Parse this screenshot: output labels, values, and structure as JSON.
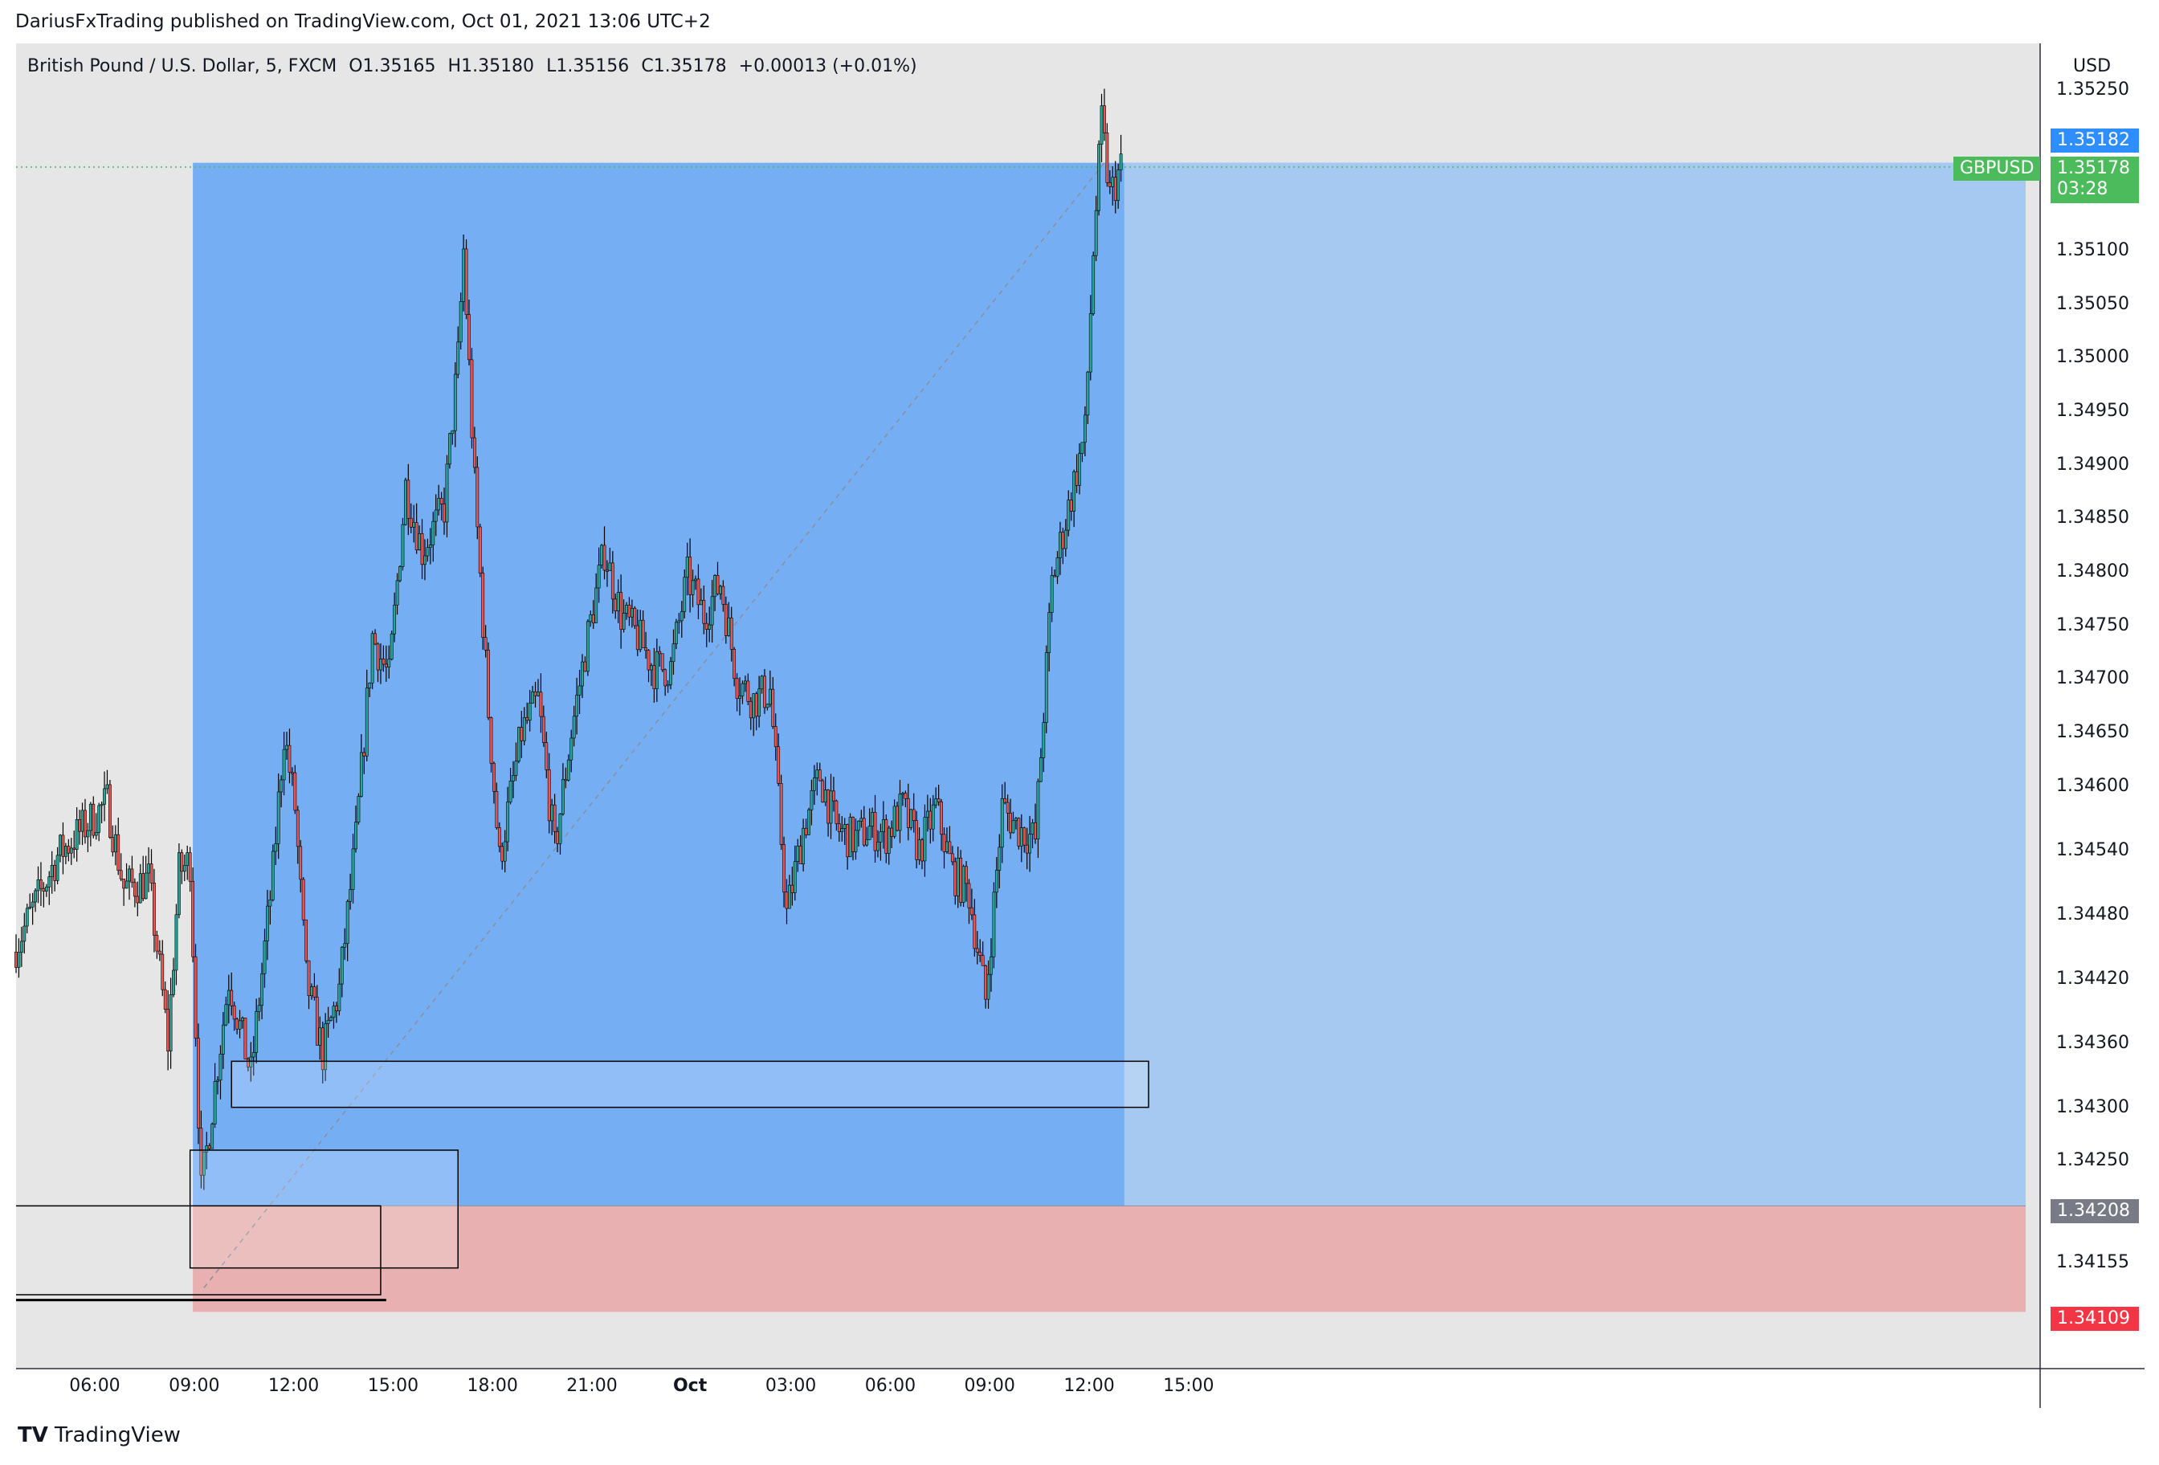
{
  "header": {
    "publisher_line": "DariusFxTrading published on TradingView.com, Oct 01, 2021 13:06 UTC+2"
  },
  "legend": {
    "symbol": "British Pound / U.S. Dollar, 5, FXCM",
    "open_label": "O",
    "open": "1.35165",
    "high_label": "H",
    "high": "1.35180",
    "low_label": "L",
    "low": "1.35156",
    "close_label": "C",
    "close": "1.35178",
    "change": "+0.00013 (+0.01%)"
  },
  "price_axis": {
    "currency": "USD",
    "ticks": [
      "1.35250",
      "1.35100",
      "1.35050",
      "1.35000",
      "1.34950",
      "1.34900",
      "1.34850",
      "1.34800",
      "1.34750",
      "1.34700",
      "1.34650",
      "1.34600",
      "1.34540",
      "1.34480",
      "1.34420",
      "1.34360",
      "1.34300",
      "1.34250",
      "1.34155"
    ],
    "tags": {
      "target": "1.35182",
      "current": "1.35178",
      "countdown": "03:28",
      "symbol_tag": "GBPUSD",
      "entry": "1.34208",
      "stop": "1.34109"
    }
  },
  "time_axis": {
    "ticks": [
      "06:00",
      "09:00",
      "12:00",
      "15:00",
      "18:00",
      "21:00",
      "Oct",
      "03:00",
      "06:00",
      "09:00",
      "12:00",
      "15:00"
    ]
  },
  "footer": {
    "brand": "TradingView"
  },
  "colors": {
    "up": "#26a69a",
    "down": "#ef5350",
    "profit_zone": "#76aef4",
    "stop_zone": "#e8b0b0",
    "target_tag": "#2f8eff",
    "current_tag": "#4cbb5c",
    "stop_tag": "#f23645",
    "entry_tag": "#787b86"
  },
  "chart_data": {
    "type": "candlestick",
    "symbol": "GBPUSD",
    "timeframe": "5",
    "x_range": [
      "2021-09-30 03:40",
      "2021-10-01 16:00"
    ],
    "ylim": [
      1.3406,
      1.353
    ],
    "position": {
      "type": "long",
      "entry": 1.34208,
      "target": 1.35182,
      "stop": 1.34109
    },
    "close_path": [
      [
        "2021-09-30 03:40",
        1.34445
      ],
      [
        "2021-09-30 05:00",
        1.34535
      ],
      [
        "2021-09-30 06:00",
        1.34568
      ],
      [
        "2021-09-30 06:30",
        1.34585
      ],
      [
        "2021-09-30 07:00",
        1.34505
      ],
      [
        "2021-09-30 07:45",
        1.34512
      ],
      [
        "2021-09-30 08:00",
        1.3445
      ],
      [
        "2021-09-30 08:20",
        1.3436
      ],
      [
        "2021-09-30 08:40",
        1.3452
      ],
      [
        "2021-09-30 09:00",
        1.3453
      ],
      [
        "2021-09-30 09:20",
        1.3422
      ],
      [
        "2021-09-30 09:45",
        1.3432
      ],
      [
        "2021-09-30 10:10",
        1.3442
      ],
      [
        "2021-09-30 10:50",
        1.3433
      ],
      [
        "2021-09-30 11:30",
        1.3452
      ],
      [
        "2021-09-30 11:50",
        1.3465
      ],
      [
        "2021-09-30 12:10",
        1.3458
      ],
      [
        "2021-09-30 12:30",
        1.3442
      ],
      [
        "2021-09-30 13:00",
        1.3435
      ],
      [
        "2021-09-30 13:30",
        1.3441
      ],
      [
        "2021-09-30 14:00",
        1.3455
      ],
      [
        "2021-09-30 14:30",
        1.3474
      ],
      [
        "2021-09-30 15:00",
        1.347
      ],
      [
        "2021-09-30 15:30",
        1.3488
      ],
      [
        "2021-09-30 16:00",
        1.3482
      ],
      [
        "2021-09-30 16:40",
        1.3486
      ],
      [
        "2021-09-30 17:05",
        1.35
      ],
      [
        "2021-09-30 17:15",
        1.351
      ],
      [
        "2021-09-30 17:35",
        1.3488
      ],
      [
        "2021-09-30 18:00",
        1.3467
      ],
      [
        "2021-09-30 18:20",
        1.3453
      ],
      [
        "2021-09-30 19:00",
        1.3465
      ],
      [
        "2021-09-30 19:30",
        1.3468
      ],
      [
        "2021-09-30 20:00",
        1.3454
      ],
      [
        "2021-09-30 20:30",
        1.3465
      ],
      [
        "2021-09-30 21:00",
        1.3474
      ],
      [
        "2021-09-30 21:30",
        1.3482
      ],
      [
        "2021-09-30 22:00",
        1.3476
      ],
      [
        "2021-09-30 22:30",
        1.3474
      ],
      [
        "2021-09-30 23:00",
        1.3471
      ],
      [
        "2021-09-30 23:30",
        1.3471
      ],
      [
        "2021-10-01 00:00",
        1.34795
      ],
      [
        "2021-10-01 00:30",
        1.3476
      ],
      [
        "2021-10-01 01:00",
        1.3479
      ],
      [
        "2021-10-01 01:30",
        1.347
      ],
      [
        "2021-10-01 02:00",
        1.3468
      ],
      [
        "2021-10-01 02:30",
        1.3469
      ],
      [
        "2021-10-01 03:00",
        1.3448
      ],
      [
        "2021-10-01 03:30",
        1.3456
      ],
      [
        "2021-10-01 04:00",
        1.3461
      ],
      [
        "2021-10-01 04:30",
        1.3456
      ],
      [
        "2021-10-01 05:00",
        1.3455
      ],
      [
        "2021-10-01 05:30",
        1.3456
      ],
      [
        "2021-10-01 06:00",
        1.34555
      ],
      [
        "2021-10-01 06:30",
        1.3458
      ],
      [
        "2021-10-01 07:00",
        1.3454
      ],
      [
        "2021-10-01 07:30",
        1.3458
      ],
      [
        "2021-10-01 08:00",
        1.3452
      ],
      [
        "2021-10-01 08:30",
        1.345
      ],
      [
        "2021-10-01 09:00",
        1.344
      ],
      [
        "2021-10-01 09:30",
        1.3458
      ],
      [
        "2021-10-01 10:00",
        1.3456
      ],
      [
        "2021-10-01 10:30",
        1.3455
      ],
      [
        "2021-10-01 11:00",
        1.3479
      ],
      [
        "2021-10-01 11:30",
        1.3486
      ],
      [
        "2021-10-01 12:00",
        1.3493
      ],
      [
        "2021-10-01 12:15",
        1.351
      ],
      [
        "2021-10-01 12:30",
        1.3522
      ],
      [
        "2021-10-01 12:45",
        1.3515
      ],
      [
        "2021-10-01 13:06",
        1.35178
      ]
    ]
  }
}
